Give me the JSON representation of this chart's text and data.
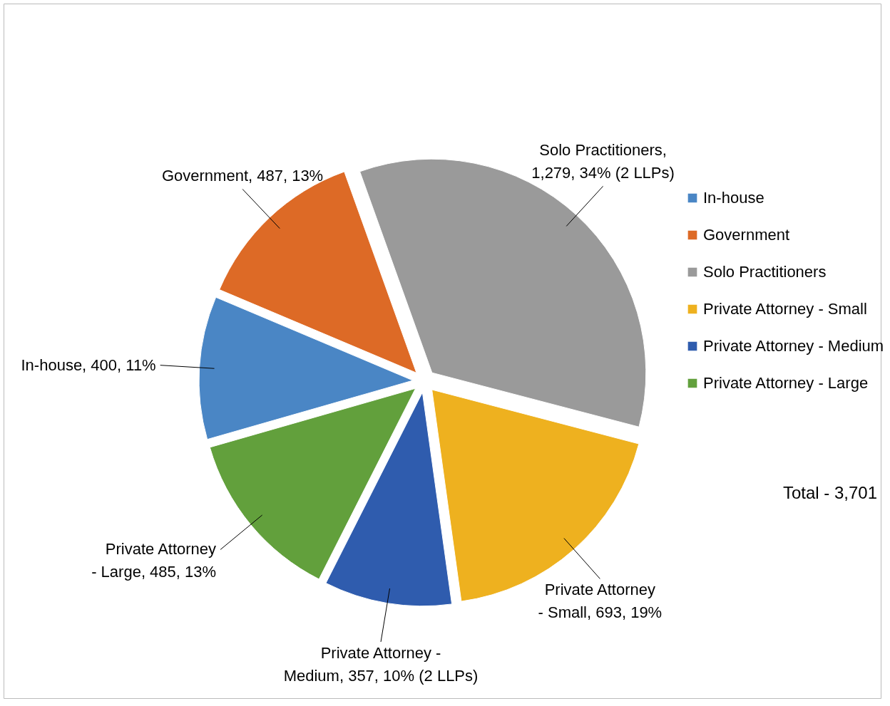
{
  "chart_data": {
    "type": "pie",
    "categories": [
      "In-house",
      "Government",
      "Solo Practitioners",
      "Private Attorney - Small",
      "Private Attorney - Medium",
      "Private Attorney - Large"
    ],
    "values": [
      400,
      487,
      1279,
      693,
      357,
      485
    ],
    "colors": [
      "#4a86c5",
      "#dd6a26",
      "#9a9a9a",
      "#eeb11f",
      "#2f5cae",
      "#62a03c"
    ],
    "value_labels": [
      "In-house, 400, 11%",
      "Government, 487, 13%",
      "Solo Practitioners, 1,279, 34% (2 LLPs)",
      "Private Attorney - Small, 693, 19%",
      "Private Attorney - Medium, 357, 10% (2 LLPs)",
      "Private Attorney - Large, 485, 13%"
    ],
    "legend": "right",
    "annotations": [
      "Total - 3,701"
    ]
  }
}
